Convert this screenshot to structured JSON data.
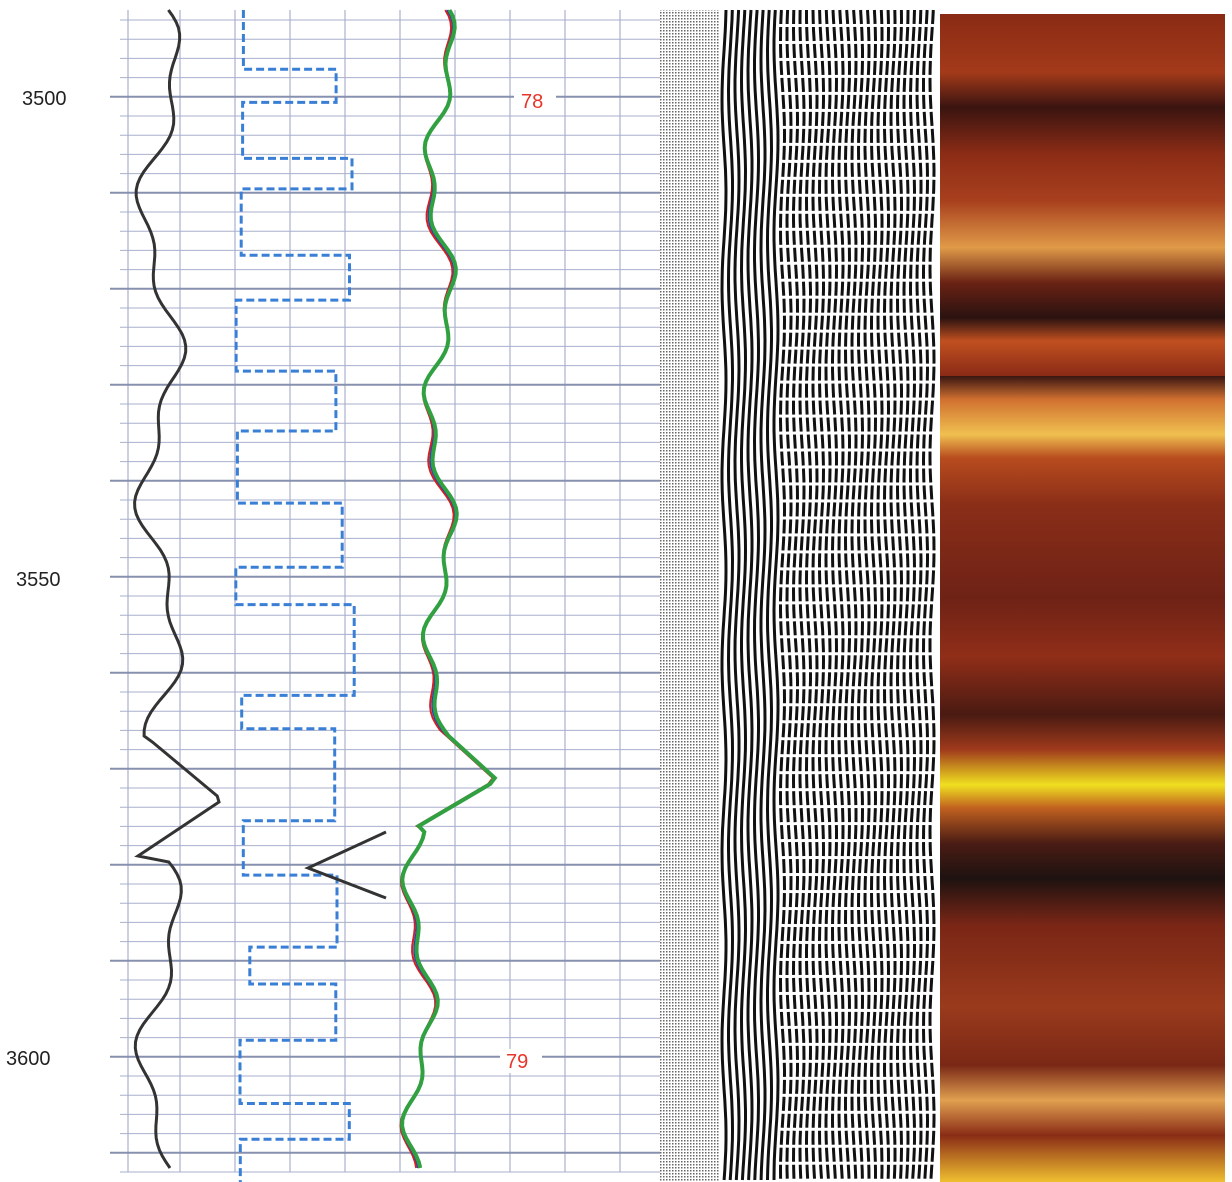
{
  "depth_track": {
    "labels": [
      "3500",
      "3550",
      "3600"
    ]
  },
  "markers": [
    "78",
    "79"
  ]
}
